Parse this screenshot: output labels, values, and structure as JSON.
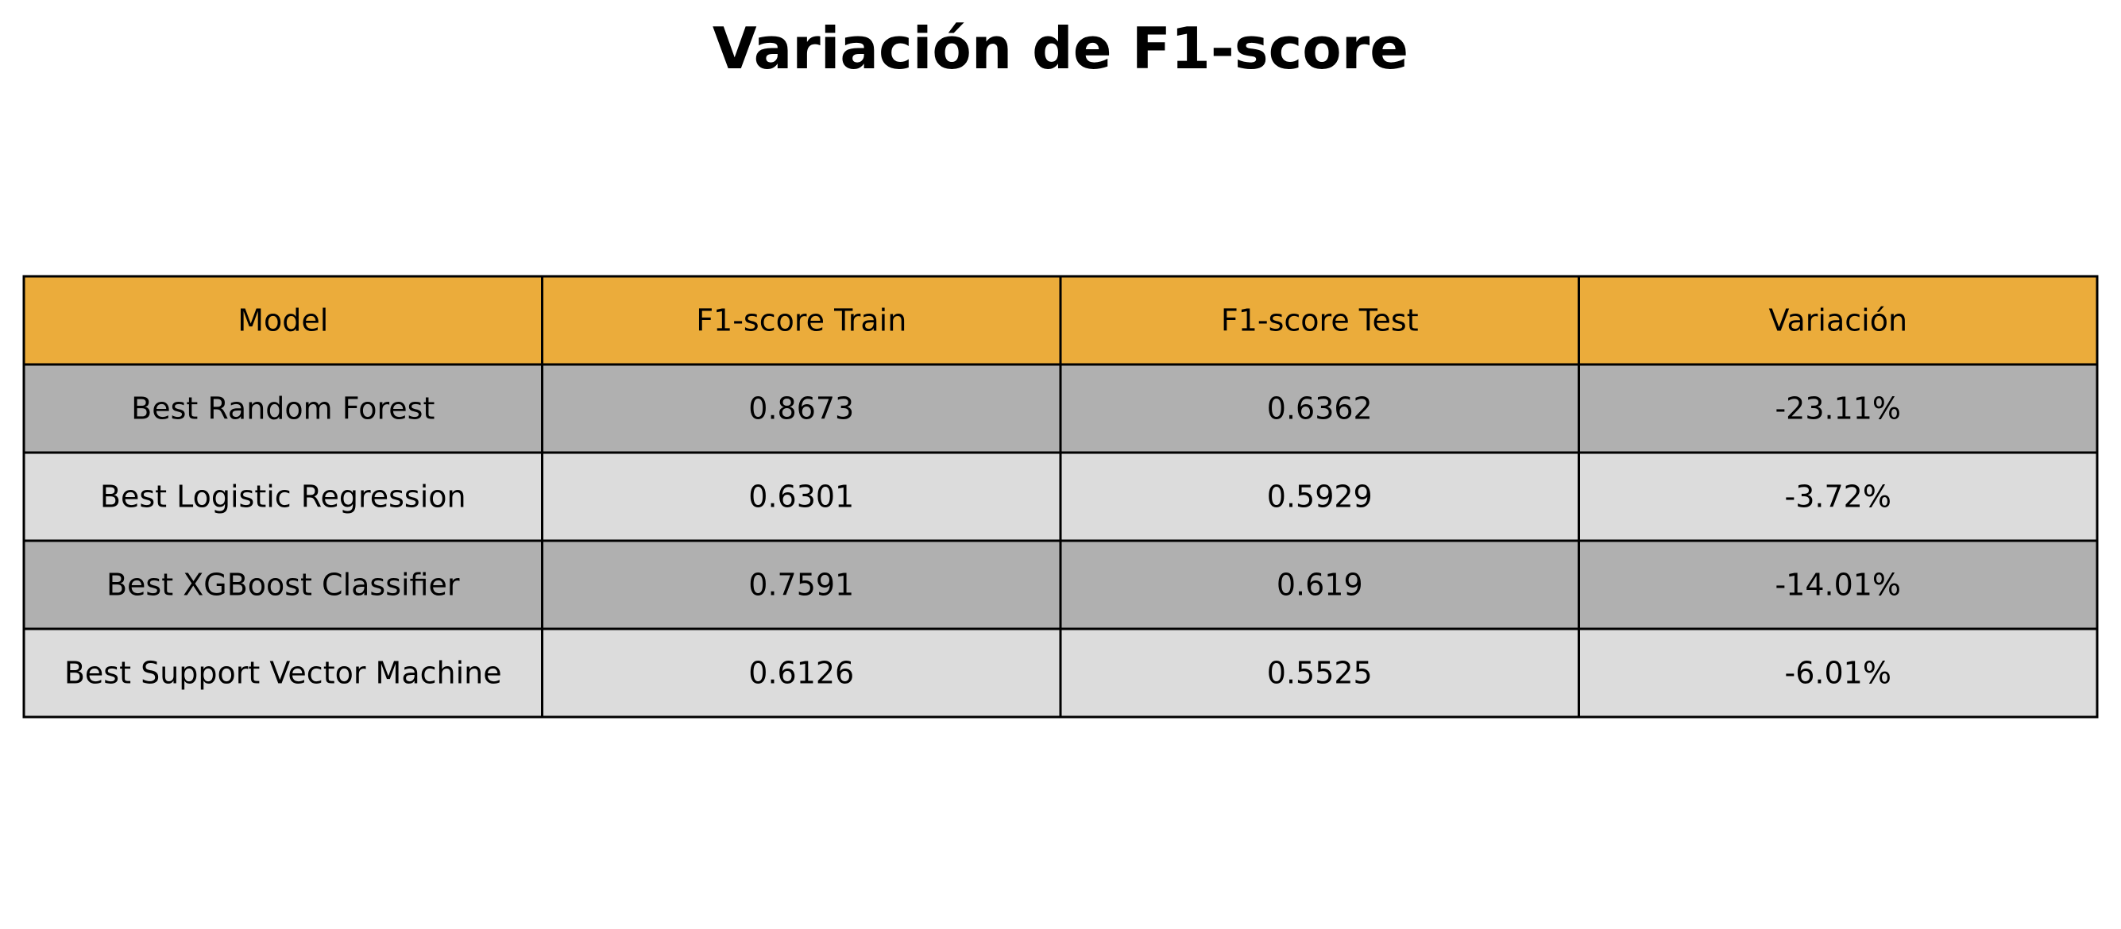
{
  "chart_data": {
    "type": "table",
    "title": "Variación de F1-score",
    "columns": [
      "Model",
      "F1-score Train",
      "F1-score Test",
      "Variación"
    ],
    "rows": [
      [
        "Best Random Forest",
        "0.8673",
        "0.6362",
        "-23.11%"
      ],
      [
        "Best Logistic Regression",
        "0.6301",
        "0.5929",
        "-3.72%"
      ],
      [
        "Best XGBoost Classifier",
        "0.7591",
        "0.619",
        "-14.01%"
      ],
      [
        "Best Support Vector Machine",
        "0.6126",
        "0.5525",
        "-6.01%"
      ]
    ]
  },
  "colors": {
    "header_fill": "#ebac3b",
    "row_dark_fill": "#b0b0b0",
    "row_light_fill": "#dcdcdc",
    "border": "#000000"
  }
}
